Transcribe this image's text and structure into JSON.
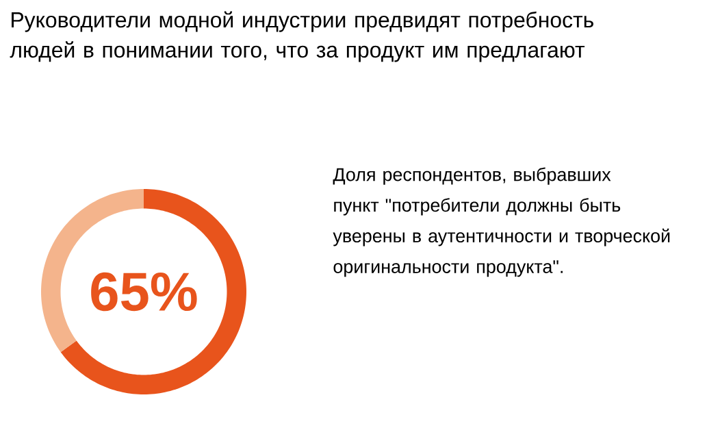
{
  "chart_data": {
    "type": "donut",
    "title": "Руководители модной индустрии предвидят потребность людей в понимании того, что за продукт им предлагают",
    "categories": [
      null,
      null
    ],
    "values": [
      65,
      35
    ],
    "colors": [
      "#e8541c",
      "#f4b48c"
    ],
    "value_labels": [
      "65%",
      null
    ],
    "annotations": [
      "Доля респондентов, выбравших пункт \"потребители должны быть уверены в аутентичности и творческой оригинальности продукта\"."
    ]
  }
}
